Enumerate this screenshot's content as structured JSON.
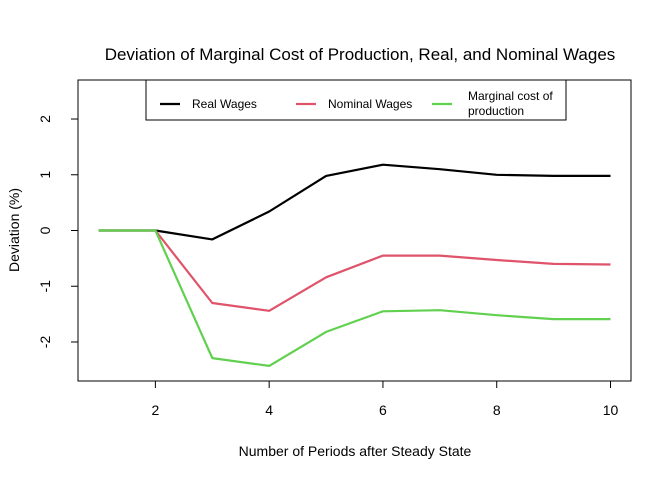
{
  "chart_data": {
    "type": "line",
    "title": "Deviation of Marginal Cost of Production, Real, and Nominal Wages",
    "xlabel": "Number of Periods after Steady State",
    "ylabel": "Deviation (%)",
    "x": [
      1,
      2,
      3,
      4,
      5,
      6,
      7,
      8,
      9,
      10
    ],
    "xlim": [
      0.64,
      10.36
    ],
    "ylim": [
      -2.7,
      2.7
    ],
    "xticks": [
      "2",
      "4",
      "6",
      "8",
      "10"
    ],
    "yticks": [
      "-2",
      "-1",
      "0",
      "1",
      "2"
    ],
    "grid": false,
    "legend_position": "top",
    "series": [
      {
        "name": "Real Wages",
        "color": "#000000",
        "values": [
          0,
          0,
          -0.16,
          0.34,
          0.98,
          1.18,
          1.1,
          1.0,
          0.98,
          0.98
        ]
      },
      {
        "name": "Nominal Wages",
        "color": "#DF536B",
        "values": [
          0,
          0,
          -1.3,
          -1.44,
          -0.84,
          -0.45,
          -0.45,
          -0.53,
          -0.6,
          -0.61
        ]
      },
      {
        "name": "Marginal cost of production",
        "color": "#61D04F",
        "values": [
          0,
          0,
          -2.29,
          -2.43,
          -1.82,
          -1.45,
          -1.43,
          -1.52,
          -1.59,
          -1.59
        ]
      }
    ]
  }
}
